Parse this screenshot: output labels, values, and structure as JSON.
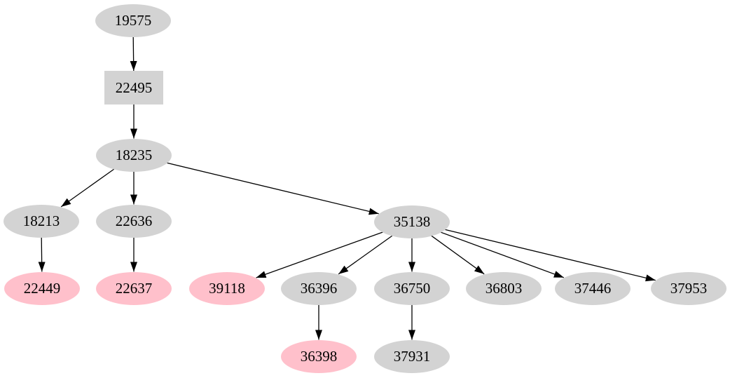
{
  "graph": {
    "background_color": "#ffffff",
    "edge_color": "#000000",
    "text_color": "#000000",
    "default_fill": "#d3d3d3",
    "highlight_fill": "#ffc0cb",
    "nodes": [
      {
        "id": "19575",
        "label": "19575",
        "shape": "ellipse",
        "fill": "#d3d3d3"
      },
      {
        "id": "22495",
        "label": "22495",
        "shape": "box",
        "fill": "#d3d3d3"
      },
      {
        "id": "18235",
        "label": "18235",
        "shape": "ellipse",
        "fill": "#d3d3d3"
      },
      {
        "id": "18213",
        "label": "18213",
        "shape": "ellipse",
        "fill": "#d3d3d3"
      },
      {
        "id": "22636",
        "label": "22636",
        "shape": "ellipse",
        "fill": "#d3d3d3"
      },
      {
        "id": "35138",
        "label": "35138",
        "shape": "ellipse",
        "fill": "#d3d3d3"
      },
      {
        "id": "22449",
        "label": "22449",
        "shape": "ellipse",
        "fill": "#ffc0cb"
      },
      {
        "id": "22637",
        "label": "22637",
        "shape": "ellipse",
        "fill": "#ffc0cb"
      },
      {
        "id": "39118",
        "label": "39118",
        "shape": "ellipse",
        "fill": "#ffc0cb"
      },
      {
        "id": "36396",
        "label": "36396",
        "shape": "ellipse",
        "fill": "#d3d3d3"
      },
      {
        "id": "36750",
        "label": "36750",
        "shape": "ellipse",
        "fill": "#d3d3d3"
      },
      {
        "id": "36803",
        "label": "36803",
        "shape": "ellipse",
        "fill": "#d3d3d3"
      },
      {
        "id": "37446",
        "label": "37446",
        "shape": "ellipse",
        "fill": "#d3d3d3"
      },
      {
        "id": "37953",
        "label": "37953",
        "shape": "ellipse",
        "fill": "#d3d3d3"
      },
      {
        "id": "36398",
        "label": "36398",
        "shape": "ellipse",
        "fill": "#ffc0cb"
      },
      {
        "id": "37931",
        "label": "37931",
        "shape": "ellipse",
        "fill": "#d3d3d3"
      }
    ],
    "edges": [
      {
        "from": "19575",
        "to": "22495"
      },
      {
        "from": "22495",
        "to": "18235"
      },
      {
        "from": "18235",
        "to": "18213"
      },
      {
        "from": "18235",
        "to": "22636"
      },
      {
        "from": "18235",
        "to": "35138"
      },
      {
        "from": "18213",
        "to": "22449"
      },
      {
        "from": "22636",
        "to": "22637"
      },
      {
        "from": "35138",
        "to": "39118"
      },
      {
        "from": "35138",
        "to": "36396"
      },
      {
        "from": "35138",
        "to": "36750"
      },
      {
        "from": "35138",
        "to": "36803"
      },
      {
        "from": "35138",
        "to": "37446"
      },
      {
        "from": "35138",
        "to": "37953"
      },
      {
        "from": "36396",
        "to": "36398"
      },
      {
        "from": "36750",
        "to": "37931"
      }
    ]
  }
}
